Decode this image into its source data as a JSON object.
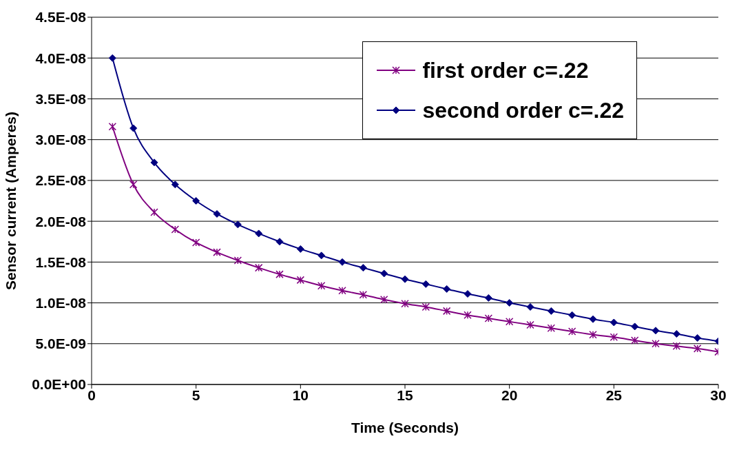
{
  "chart_data": {
    "type": "line",
    "xlabel": "Time  (Seconds)",
    "ylabel": "Sensor current (Amperes)",
    "x": [
      1,
      2,
      3,
      4,
      5,
      6,
      7,
      8,
      9,
      10,
      11,
      12,
      13,
      14,
      15,
      16,
      17,
      18,
      19,
      20,
      21,
      22,
      23,
      24,
      25,
      26,
      27,
      28,
      29,
      30
    ],
    "series": [
      {
        "name": "first order c=.22",
        "color": "#800080",
        "marker": "cross",
        "values": [
          3.16e-08,
          2.45e-08,
          2.11e-08,
          1.9e-08,
          1.74e-08,
          1.62e-08,
          1.52e-08,
          1.43e-08,
          1.35e-08,
          1.28e-08,
          1.21e-08,
          1.15e-08,
          1.1e-08,
          1.04e-08,
          9.9e-09,
          9.5e-09,
          9e-09,
          8.5e-09,
          8.1e-09,
          7.7e-09,
          7.3e-09,
          6.9e-09,
          6.5e-09,
          6.1e-09,
          5.8e-09,
          5.4e-09,
          5e-09,
          4.7e-09,
          4.4e-09,
          4e-09
        ]
      },
      {
        "name": "second order c=.22",
        "color": "#000080",
        "marker": "diamond",
        "values": [
          4e-08,
          3.14e-08,
          2.72e-08,
          2.45e-08,
          2.25e-08,
          2.09e-08,
          1.96e-08,
          1.85e-08,
          1.75e-08,
          1.66e-08,
          1.58e-08,
          1.5e-08,
          1.43e-08,
          1.36e-08,
          1.29e-08,
          1.23e-08,
          1.17e-08,
          1.11e-08,
          1.06e-08,
          1e-08,
          9.5e-09,
          9e-09,
          8.5e-09,
          8e-09,
          7.6e-09,
          7.1e-09,
          6.6e-09,
          6.2e-09,
          5.7e-09,
          5.3e-09
        ]
      }
    ],
    "xlim": [
      0,
      30
    ],
    "xticks": [
      0,
      5,
      10,
      15,
      20,
      25,
      30
    ],
    "ylim": [
      0,
      4.5e-08
    ],
    "yticks": [
      {
        "value": 0,
        "label": "0.0E+00"
      },
      {
        "value": 5e-09,
        "label": "5.0E-09"
      },
      {
        "value": 1e-08,
        "label": "1.0E-08"
      },
      {
        "value": 1.5e-08,
        "label": "1.5E-08"
      },
      {
        "value": 2e-08,
        "label": "2.0E-08"
      },
      {
        "value": 2.5e-08,
        "label": "2.5E-08"
      },
      {
        "value": 3e-08,
        "label": "3.0E-08"
      },
      {
        "value": 3.5e-08,
        "label": "3.5E-08"
      },
      {
        "value": 4e-08,
        "label": "4.0E-08"
      },
      {
        "value": 4.5e-08,
        "label": "4.5E-08"
      }
    ],
    "grid": "y",
    "legend": "top right",
    "line_style": "solid"
  }
}
